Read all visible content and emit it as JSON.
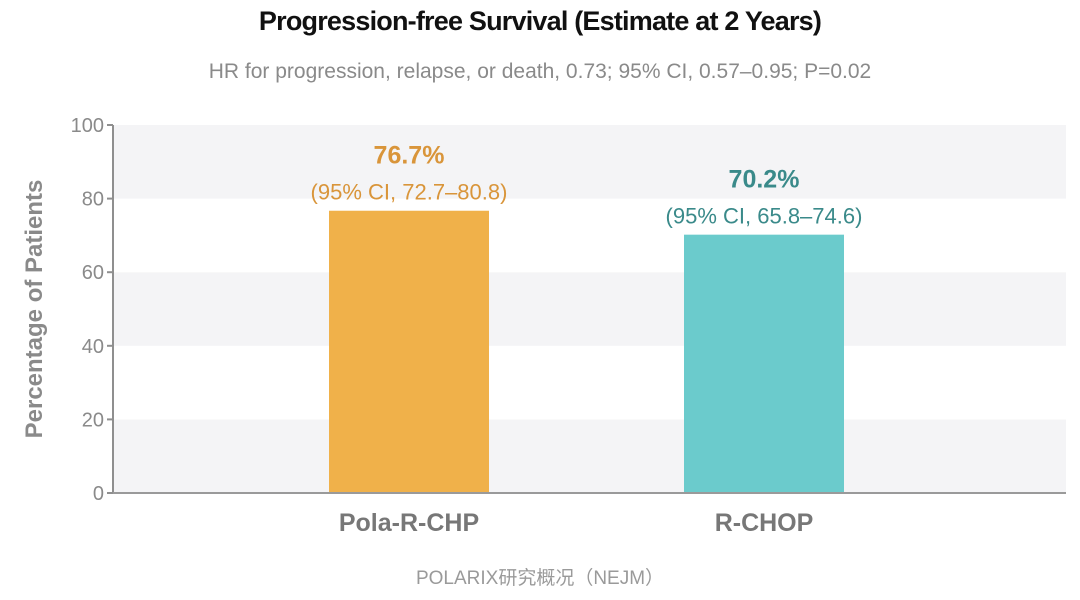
{
  "chart_data": {
    "type": "bar",
    "title": "Progression-free Survival (Estimate at 2 Years)",
    "subtitle": "HR for progression, relapse, or death, 0.73; 95% CI, 0.57–0.95; P=0.02",
    "xlabel": "",
    "ylabel": "Percentage of Patients",
    "ylim": [
      0,
      100
    ],
    "yticks": [
      "0",
      "20",
      "40",
      "60",
      "80",
      "100"
    ],
    "grid": "alternating bands",
    "categories": [
      "Pola-R-CHP",
      "R-CHOP"
    ],
    "values": [
      76.7,
      70.2
    ],
    "value_labels": [
      "76.7%",
      "70.2%"
    ],
    "ci_labels": [
      "(95% CI, 72.7–80.8)",
      "(95% CI, 65.8–74.6)"
    ],
    "colors": [
      "#f0b14a",
      "#6bcbcc"
    ],
    "label_colors": [
      "#d9953a",
      "#3a8a8a"
    ]
  },
  "footer": "POLARIX研究概况（NEJM）"
}
